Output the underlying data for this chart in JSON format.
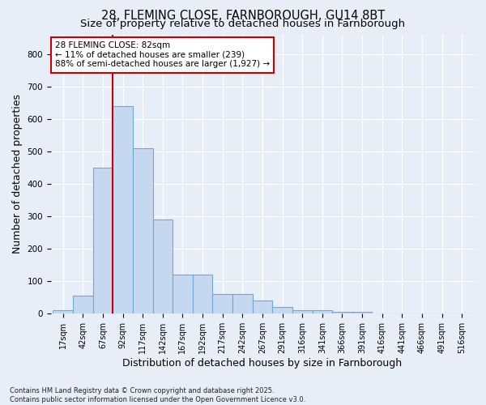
{
  "title_line1": "28, FLEMING CLOSE, FARNBOROUGH, GU14 8BT",
  "title_line2": "Size of property relative to detached houses in Farnborough",
  "xlabel": "Distribution of detached houses by size in Farnborough",
  "ylabel": "Number of detached properties",
  "footnote1": "Contains HM Land Registry data © Crown copyright and database right 2025.",
  "footnote2": "Contains public sector information licensed under the Open Government Licence v3.0.",
  "bar_labels": [
    "17sqm",
    "42sqm",
    "67sqm",
    "92sqm",
    "117sqm",
    "142sqm",
    "167sqm",
    "192sqm",
    "217sqm",
    "242sqm",
    "267sqm",
    "291sqm",
    "316sqm",
    "341sqm",
    "366sqm",
    "391sqm",
    "416sqm",
    "441sqm",
    "466sqm",
    "491sqm",
    "516sqm"
  ],
  "bar_values": [
    10,
    55,
    450,
    640,
    510,
    290,
    120,
    120,
    60,
    60,
    40,
    20,
    10,
    10,
    5,
    5,
    0,
    0,
    0,
    0,
    0
  ],
  "bar_color": "#c5d8f0",
  "bar_edge_color": "#6aaad4",
  "vline_x_idx": 2.5,
  "vline_color": "#cc0000",
  "annotation_box_text": "28 FLEMING CLOSE: 82sqm\n← 11% of detached houses are smaller (239)\n88% of semi-detached houses are larger (1,927) →",
  "ylim": [
    0,
    860
  ],
  "yticks": [
    0,
    100,
    200,
    300,
    400,
    500,
    600,
    700,
    800
  ],
  "background_color": "#e8eef8",
  "plot_bg_color": "#e8eef8",
  "grid_color": "#ffffff",
  "title_fontsize": 10.5,
  "subtitle_fontsize": 9.5,
  "axis_label_fontsize": 9,
  "tick_fontsize": 7,
  "annot_fontsize": 7.5
}
